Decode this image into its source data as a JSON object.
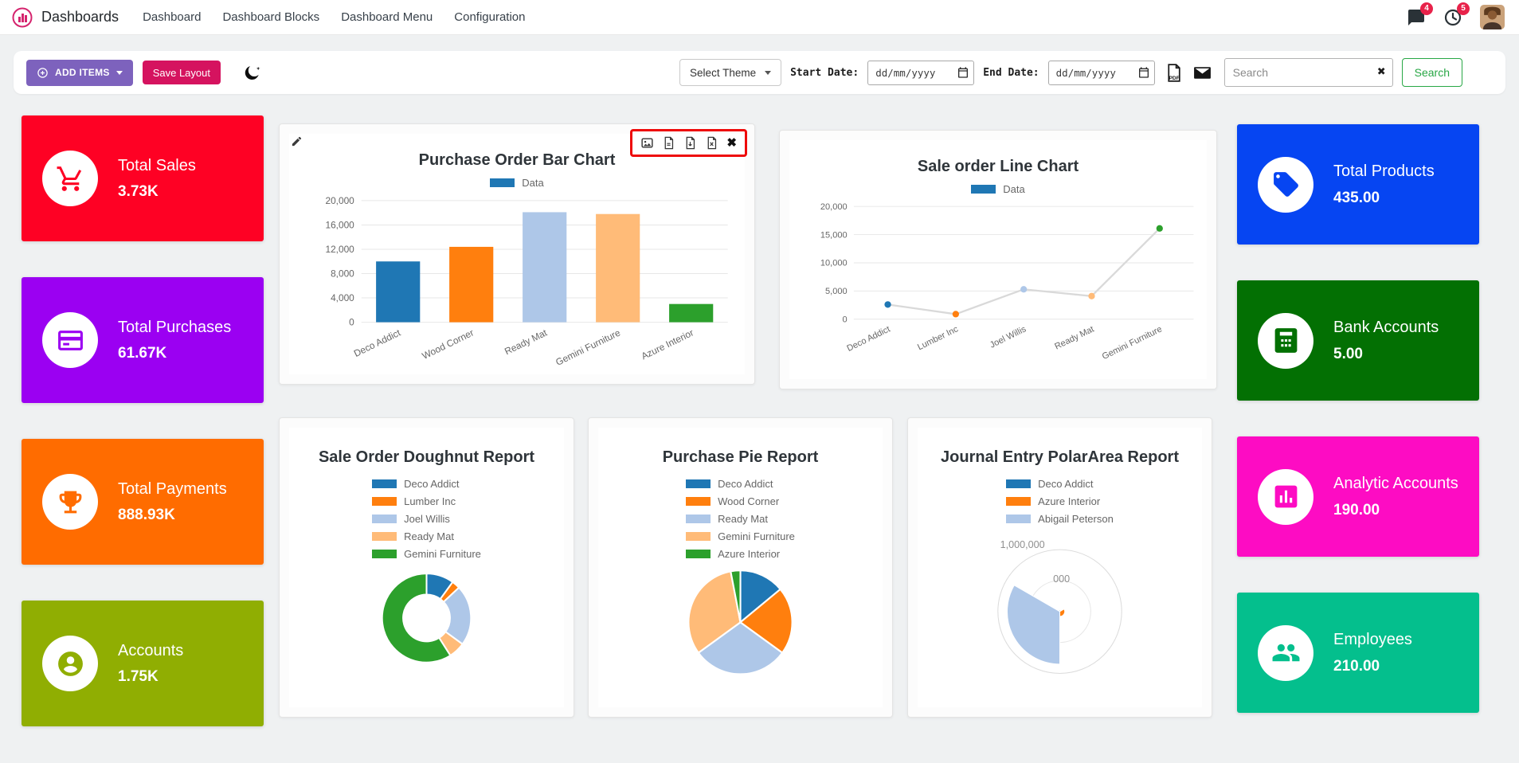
{
  "navbar": {
    "brand": "Dashboards",
    "menu": [
      "Dashboard",
      "Dashboard Blocks",
      "Dashboard Menu",
      "Configuration"
    ],
    "message_badge": "4",
    "activity_badge": "5"
  },
  "toolbar": {
    "add_items": "ADD ITEMS",
    "save_layout": "Save Layout",
    "select_theme": "Select Theme",
    "start_date_label": "Start Date:",
    "end_date_label": "End Date:",
    "date_placeholder": "dd/mm/yyyy",
    "search_placeholder": "Search",
    "search_button": "Search"
  },
  "icons": {
    "clear": "✖",
    "close": "✖"
  },
  "kpis": {
    "left": [
      {
        "title": "Total Sales",
        "value": "3.73K",
        "color": "#fe0124",
        "icon": "shopping-cart"
      },
      {
        "title": "Total Purchases",
        "value": "61.67K",
        "color": "#9b00f2",
        "icon": "credit-card"
      },
      {
        "title": "Total Payments",
        "value": "888.93K",
        "color": "#ff6c00",
        "icon": "trophy"
      },
      {
        "title": "Accounts",
        "value": "1.75K",
        "color": "#90ae02",
        "icon": "user-circle"
      }
    ],
    "right": [
      {
        "title": "Total Products",
        "value": "435.00",
        "color": "#0645f2",
        "icon": "tag"
      },
      {
        "title": "Bank Accounts",
        "value": "5.00",
        "color": "#037003",
        "icon": "calculator"
      },
      {
        "title": "Analytic Accounts",
        "value": "190.00",
        "color": "#fd0cc3",
        "icon": "bar-chart"
      },
      {
        "title": "Employees",
        "value": "210.00",
        "color": "#04bf8d",
        "icon": "users"
      }
    ]
  },
  "chart_data": [
    {
      "type": "bar",
      "title": "Purchase Order Bar Chart",
      "legend": [
        {
          "label": "Data",
          "color": "#1f77b4"
        }
      ],
      "legend_position": "top",
      "categories": [
        "Deco Addict",
        "Wood Corner",
        "Ready Mat",
        "Gemini Furniture",
        "Azure Interior"
      ],
      "values": [
        10000,
        12400,
        18100,
        17800,
        3000
      ],
      "colors": [
        "#1f77b4",
        "#ff7f0e",
        "#aec7e8",
        "#ffbb78",
        "#2ca02c"
      ],
      "ylim": [
        0,
        20000
      ],
      "yticks": [
        0,
        4000,
        8000,
        12000,
        16000,
        20000
      ],
      "grid": true
    },
    {
      "type": "line",
      "title": "Sale order Line Chart",
      "legend": [
        {
          "label": "Data",
          "color": "#1f77b4"
        }
      ],
      "legend_position": "top",
      "categories": [
        "Deco Addict",
        "Lumber Inc",
        "Joel Willis",
        "Ready Mat",
        "Gemini Furniture"
      ],
      "values": [
        2600,
        900,
        5300,
        4100,
        16100
      ],
      "point_colors": [
        "#1f77b4",
        "#ff7f0e",
        "#aec7e8",
        "#ffbb78",
        "#2ca02c"
      ],
      "line_color": "#d9d9d9",
      "ylim": [
        0,
        20000
      ],
      "yticks": [
        0,
        5000,
        10000,
        15000,
        20000
      ],
      "grid": true
    },
    {
      "type": "doughnut",
      "title": "Sale Order Doughnut Report",
      "legend_position": "top",
      "labels": [
        "Deco Addict",
        "Lumber Inc",
        "Joel Willis",
        "Ready Mat",
        "Gemini Furniture"
      ],
      "values": [
        10,
        3,
        22,
        6,
        59
      ],
      "colors": [
        "#1f77b4",
        "#ff7f0e",
        "#aec7e8",
        "#ffbb78",
        "#2ca02c"
      ]
    },
    {
      "type": "pie",
      "title": "Purchase Pie Report",
      "legend_position": "top",
      "labels": [
        "Deco Addict",
        "Wood Corner",
        "Ready Mat",
        "Gemini Furniture",
        "Azure Interior"
      ],
      "values": [
        14,
        21,
        30,
        32,
        3
      ],
      "colors": [
        "#1f77b4",
        "#ff7f0e",
        "#aec7e8",
        "#ffbb78",
        "#2ca02c"
      ]
    },
    {
      "type": "polarArea",
      "title": "Journal Entry PolarArea Report",
      "legend_position": "top",
      "labels": [
        "Deco Addict",
        "Azure Interior",
        "Abigail Peterson"
      ],
      "values": [
        20000,
        80000,
        850000
      ],
      "colors": [
        "#1f77b4",
        "#ff7f0e",
        "#aec7e8"
      ],
      "rmax": 1000000,
      "tick_labels": [
        "1,000,000",
        "000"
      ]
    }
  ]
}
